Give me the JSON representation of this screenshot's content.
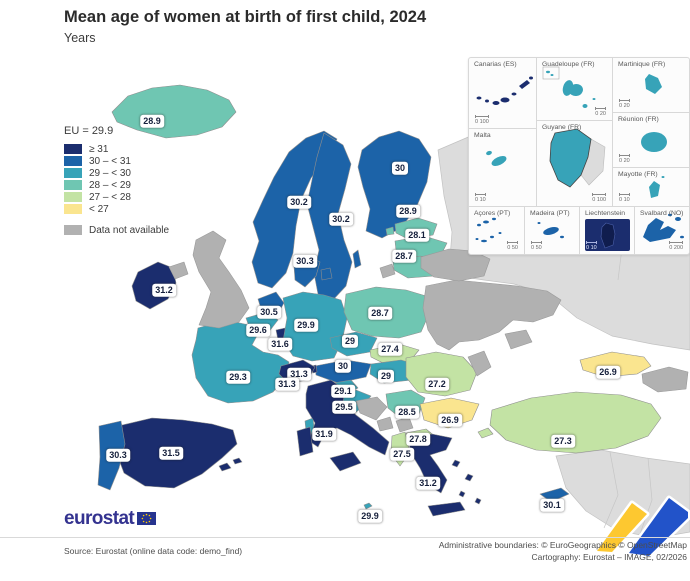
{
  "header": {
    "title": "Mean age of women at birth of first child, 2024",
    "subtitle": "Years"
  },
  "legend": {
    "eu_label": "EU = 29.9",
    "classes": [
      {
        "key": "ge31",
        "label": "≥ 31",
        "color": "#1b2d6e"
      },
      {
        "key": "c30",
        "label": "30 – < 31",
        "color": "#1c63a8"
      },
      {
        "key": "c29",
        "label": "29 – < 30",
        "color": "#37a3b8"
      },
      {
        "key": "c28",
        "label": "28 – < 29",
        "color": "#6fc6b2"
      },
      {
        "key": "c27",
        "label": "27 – < 28",
        "color": "#c3e3a4"
      },
      {
        "key": "lt27",
        "label": "< 27",
        "color": "#fae58f"
      }
    ],
    "no_data": {
      "label": "Data not available",
      "color": "#b1b1b1"
    }
  },
  "colors": {
    "outside_coverage": "#dcdcdc",
    "country_border": "#8e8e8e",
    "sea": "#ffffff",
    "ribbon_yellow": "#fdc830",
    "ribbon_blue": "#2253c9"
  },
  "map": {
    "eu_value": "29.9",
    "countries": [
      {
        "id": "iceland",
        "name": "Iceland",
        "value": "28.9",
        "category": "c28"
      },
      {
        "id": "norway",
        "name": "Norway",
        "value": "30.2",
        "category": "c30"
      },
      {
        "id": "sweden",
        "name": "Sweden",
        "value": "30.2",
        "category": "c30"
      },
      {
        "id": "finland",
        "name": "Finland",
        "value": "30",
        "category": "c30"
      },
      {
        "id": "estonia",
        "name": "Estonia",
        "value": "28.9",
        "category": "c28"
      },
      {
        "id": "latvia",
        "name": "Latvia",
        "value": "28.1",
        "category": "c28"
      },
      {
        "id": "lithuania",
        "name": "Lithuania",
        "value": "28.7",
        "category": "c28"
      },
      {
        "id": "denmark",
        "name": "Denmark",
        "value": "30.3",
        "category": "c30"
      },
      {
        "id": "ireland",
        "name": "Ireland",
        "value": "31.2",
        "category": "ge31"
      },
      {
        "id": "netherlands",
        "name": "Netherlands",
        "value": "30.5",
        "category": "c30"
      },
      {
        "id": "belgium",
        "name": "Belgium",
        "value": "29.6",
        "category": "c29"
      },
      {
        "id": "luxembourg",
        "name": "Luxembourg",
        "value": "31.6",
        "category": "ge31"
      },
      {
        "id": "germany",
        "name": "Germany",
        "value": "29.9",
        "category": "c29"
      },
      {
        "id": "poland",
        "name": "Poland",
        "value": "28.7",
        "category": "c28"
      },
      {
        "id": "czechia",
        "name": "Czechia",
        "value": "29",
        "category": "c29"
      },
      {
        "id": "slovakia",
        "name": "Slovakia",
        "value": "27.4",
        "category": "c27"
      },
      {
        "id": "austria",
        "name": "Austria",
        "value": "30",
        "category": "c30"
      },
      {
        "id": "hungary",
        "name": "Hungary",
        "value": "29",
        "category": "c29"
      },
      {
        "id": "slovenia",
        "name": "Slovenia",
        "value": "29.1",
        "category": "c29"
      },
      {
        "id": "croatia",
        "name": "Croatia",
        "value": "29.5",
        "category": "c29"
      },
      {
        "id": "france",
        "name": "France",
        "value": "29.3",
        "category": "c29"
      },
      {
        "id": "liechtenstein",
        "name": "Liechtenstein",
        "value": "31.3",
        "category": "ge31"
      },
      {
        "id": "switzerland",
        "name": "Switzerland",
        "value": "31.3",
        "category": "ge31"
      },
      {
        "id": "italy",
        "name": "Italy",
        "value": "31.9",
        "category": "ge31"
      },
      {
        "id": "spain",
        "name": "Spain",
        "value": "31.5",
        "category": "ge31"
      },
      {
        "id": "portugal",
        "name": "Portugal",
        "value": "30.3",
        "category": "c30"
      },
      {
        "id": "serbia",
        "name": "Serbia",
        "value": "28.5",
        "category": "c28"
      },
      {
        "id": "romania",
        "name": "Romania",
        "value": "27.2",
        "category": "c27"
      },
      {
        "id": "bulgaria",
        "name": "Bulgaria",
        "value": "26.9",
        "category": "lt27"
      },
      {
        "id": "north_macedonia",
        "name": "North Macedonia",
        "value": "27.8",
        "category": "c27"
      },
      {
        "id": "albania",
        "name": "Albania",
        "value": "27.5",
        "category": "c27"
      },
      {
        "id": "greece",
        "name": "Greece",
        "value": "31.2",
        "category": "ge31"
      },
      {
        "id": "malta",
        "name": "Malta",
        "value": "29.9",
        "category": "c29"
      },
      {
        "id": "turkey",
        "name": "Türkiye",
        "value": "27.3",
        "category": "c27"
      },
      {
        "id": "cyprus",
        "name": "Cyprus",
        "value": "30.1",
        "category": "c30"
      },
      {
        "id": "georgia",
        "name": "Georgia",
        "value": "26.9",
        "category": "lt27"
      }
    ],
    "no_data_regions": [
      "United Kingdom",
      "Ukraine",
      "Belarus",
      "Moldova",
      "Bosnia and Herzegovina",
      "Montenegro",
      "Kosovo",
      "Armenia",
      "Azerbaijan",
      "Russia (Kaliningrad)"
    ]
  },
  "insets": [
    {
      "id": "canarias",
      "label": "Canarias (ES)",
      "scale": "0   100",
      "category": "ge31"
    },
    {
      "id": "guadeloupe",
      "label": "Guadeloupe (FR)",
      "scale": "0   20",
      "category": "c29"
    },
    {
      "id": "martinique",
      "label": "Martinique (FR)",
      "scale": "0   20",
      "category": "c29"
    },
    {
      "id": "reunion",
      "label": "Réunion (FR)",
      "scale": "0   20",
      "category": "c29"
    },
    {
      "id": "malta_inset",
      "label": "Malta",
      "scale": "0   10",
      "category": "c29"
    },
    {
      "id": "guyane",
      "label": "Guyane (FR)",
      "scale": "0   100",
      "category": "c29"
    },
    {
      "id": "mayotte",
      "label": "Mayotte (FR)",
      "scale": "0   10",
      "category": "c29"
    },
    {
      "id": "acores",
      "label": "Açores (PT)",
      "scale": "0   50",
      "category": "c30"
    },
    {
      "id": "madeira",
      "label": "Madeira (PT)",
      "scale": "0   50",
      "category": "c30"
    },
    {
      "id": "liechtenstein_inset",
      "label": "Liechtenstein",
      "scale": "0   10",
      "category": "ge31"
    },
    {
      "id": "svalbard",
      "label": "Svalbard (NO)",
      "scale": "0   200",
      "category": "c30"
    }
  ],
  "logo": {
    "text": "eurostat"
  },
  "footer": {
    "source": "Source: Eurostat (online data code: demo_find)",
    "boundaries": "Administrative boundaries: © EuroGeographics © OpenStreetMap",
    "cartography": "Cartography: Eurostat – IMAGE, 02/2026"
  }
}
